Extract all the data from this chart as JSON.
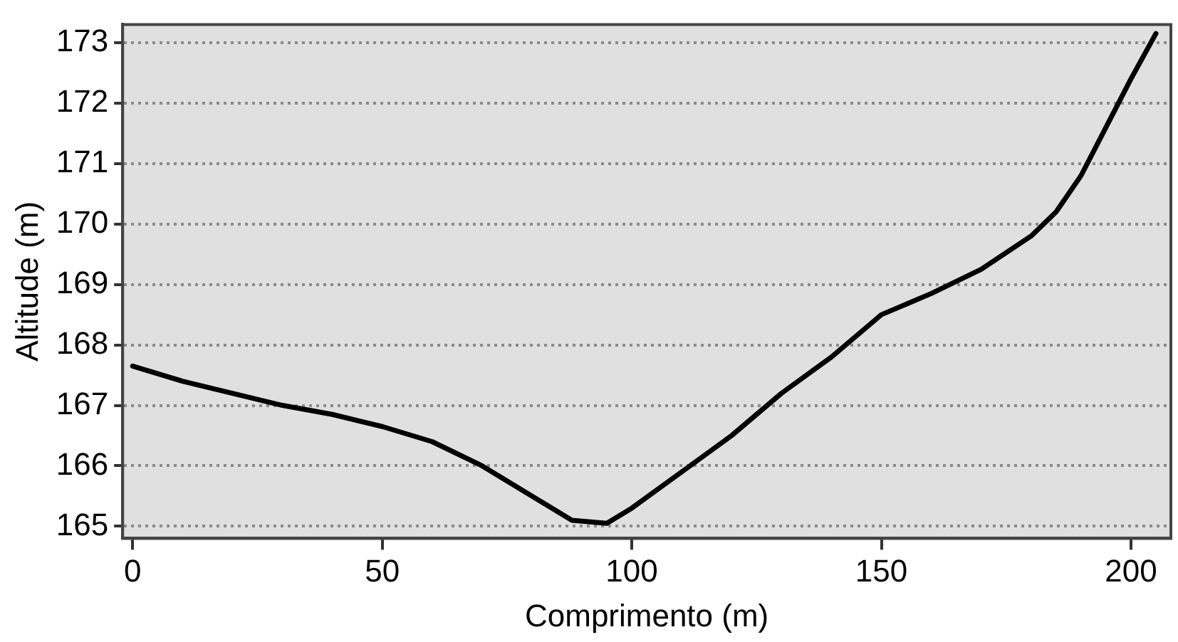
{
  "chart_data": {
    "type": "line",
    "xlabel": "Comprimento (m)",
    "ylabel": "Altitude (m)",
    "x": [
      0,
      10,
      20,
      30,
      40,
      50,
      60,
      70,
      80,
      88,
      95,
      100,
      110,
      120,
      130,
      140,
      150,
      160,
      170,
      180,
      185,
      190,
      200,
      205
    ],
    "series": [
      {
        "color": "#000000",
        "values": [
          167.65,
          167.4,
          167.2,
          167.0,
          166.85,
          166.65,
          166.4,
          166.0,
          165.5,
          165.1,
          165.05,
          165.3,
          165.9,
          166.5,
          167.2,
          167.8,
          168.5,
          168.85,
          169.25,
          169.8,
          170.2,
          170.8,
          172.4,
          173.15
        ]
      }
    ],
    "xlim": [
      -2,
      208
    ],
    "xticks": [
      0,
      50,
      100,
      150,
      200
    ],
    "ylim": [
      164.8,
      173.3
    ],
    "yticks": [
      165,
      166,
      167,
      168,
      169,
      170,
      171,
      172,
      173
    ],
    "grid": "y",
    "legend": false,
    "marker": "none",
    "line_style": "solid"
  }
}
